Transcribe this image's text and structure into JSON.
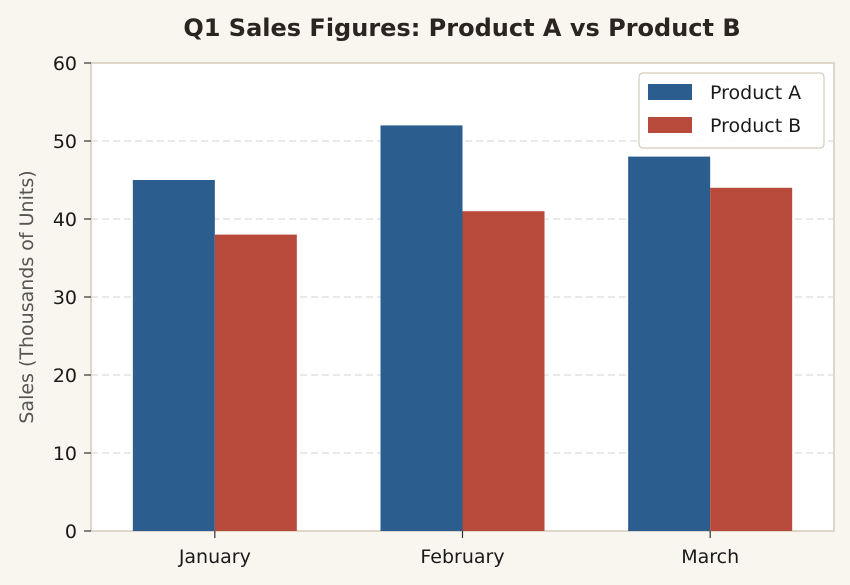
{
  "chart_data": {
    "type": "bar",
    "title": "Q1 Sales Figures: Product A vs Product B",
    "xlabel": "",
    "ylabel": "Sales (Thousands of Units)",
    "categories": [
      "January",
      "February",
      "March"
    ],
    "series": [
      {
        "name": "Product A",
        "values": [
          45,
          52,
          48
        ],
        "color": "#2c5d8f"
      },
      {
        "name": "Product B",
        "values": [
          38,
          41,
          44
        ],
        "color": "#b84a3b"
      }
    ],
    "ylim": [
      0,
      60
    ],
    "yticks": [
      0,
      10,
      20,
      30,
      40,
      50,
      60
    ],
    "grid": true,
    "legend_position": "top-right"
  },
  "colors": {
    "background": "#f9f5ef",
    "plot_background": "#ffffff",
    "frame": "#d5cabc",
    "grid": "#dcdcdc"
  }
}
